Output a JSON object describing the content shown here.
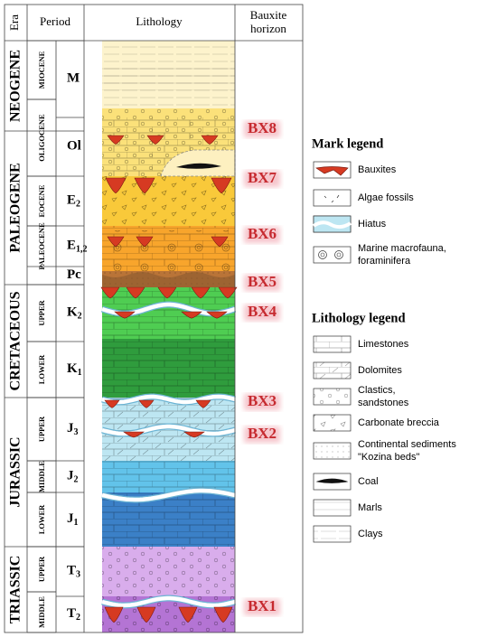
{
  "header": {
    "era": "Era",
    "period": "Period",
    "lithology": "Lithology",
    "bauxite_horizon": [
      "Bauxite",
      "horizon"
    ]
  },
  "eras": [
    "NEOGENE",
    "PALEOGENE",
    "CRETACEOUS",
    "JURASSIC",
    "TRIASSIC"
  ],
  "epochs": [
    "MIOCENE",
    "OLIGOCENE",
    "EOCENE",
    "PALEOCENE",
    "UPPER",
    "LOWER",
    "UPPER",
    "MIDDLE",
    "LOWER",
    "UPPER",
    "MIDDLE"
  ],
  "period_symbols": [
    {
      "main": "M"
    },
    {
      "main": "Ol"
    },
    {
      "main": "E",
      "sub": "2"
    },
    {
      "main": "E",
      "sub": "1,2"
    },
    {
      "main": "Pc"
    },
    {
      "main": "K",
      "sub": "2"
    },
    {
      "main": "K",
      "sub": "1"
    },
    {
      "main": "J",
      "sub": "3"
    },
    {
      "main": "J",
      "sub": "2"
    },
    {
      "main": "J",
      "sub": "1"
    },
    {
      "main": "T",
      "sub": "3"
    },
    {
      "main": "T",
      "sub": "2"
    }
  ],
  "bauxite_horizons": [
    "BX8",
    "BX7",
    "BX6",
    "BX5",
    "BX4",
    "BX3",
    "BX2",
    "BX1"
  ],
  "mark_legend": {
    "title": "Mark legend",
    "items": [
      [
        "Bauxites"
      ],
      [
        "Algae fossils"
      ],
      [
        "Hiatus"
      ],
      [
        "Marine macrofauna,",
        "foraminifera"
      ]
    ]
  },
  "lithology_legend": {
    "title": "Lithology legend",
    "items": [
      [
        "Limestones"
      ],
      [
        "Dolomites"
      ],
      [
        "Clastics,",
        "sandstones"
      ],
      [
        "Carbonate breccia"
      ],
      [
        "Continental sediments",
        "\"Kozina beds\""
      ],
      [
        "Coal"
      ],
      [
        "Marls"
      ],
      [
        "Clays"
      ]
    ]
  }
}
